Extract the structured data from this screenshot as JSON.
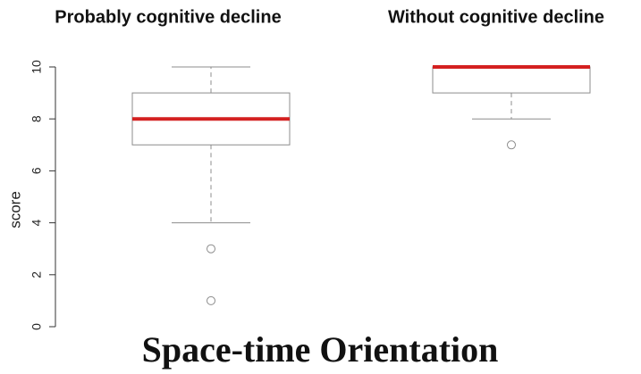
{
  "chart_data": {
    "type": "boxplot",
    "title": "Space-time Orientation",
    "ylabel": "score",
    "ylim": [
      0,
      10
    ],
    "yticks": [
      0,
      2,
      4,
      6,
      8,
      10
    ],
    "box_color": "#8c8c8c",
    "median_color": "#d42020",
    "boxes": [
      {
        "name": "Probably cognitive decline",
        "whisker_low": 4,
        "q1": 7,
        "median": 8,
        "q3": 9,
        "whisker_high": 10,
        "outliers": [
          3,
          1
        ]
      },
      {
        "name": "Without cognitive decline",
        "whisker_low": 8,
        "q1": 9,
        "median": 10,
        "q3": 10,
        "whisker_high": 10,
        "outliers": [
          7
        ]
      }
    ]
  }
}
